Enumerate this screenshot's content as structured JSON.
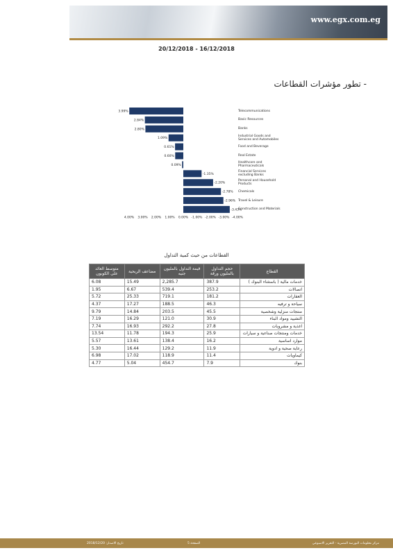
{
  "header": {
    "site": "www.egx.com.eg",
    "date_range": "20/12/2018 - 16/12/2018"
  },
  "section_title": "- تطور مؤشرات القطاعات",
  "chart_data": {
    "type": "bar",
    "orientation": "horizontal",
    "color": "#1f3a68",
    "categories": [
      "Telecommunications",
      "Basic Resources",
      "Banks",
      "Industrial Goods and Services and Automobiles",
      "Food and Beverage",
      "Real Estate",
      "Healthcare and Pharmaceuticals",
      "Financial Services excluding Banks",
      "Personal and Household Products",
      "Chemicals",
      "Travel & Leisure",
      "Construction and Materials"
    ],
    "values": [
      3.99,
      2.84,
      2.8,
      1.09,
      0.61,
      0.6,
      0.09,
      -1.35,
      -2.2,
      -2.78,
      -2.96,
      -3.43
    ],
    "value_labels": [
      "3.99%",
      "2.84%",
      "2.80%",
      "1.09%",
      "0.61%",
      "0.60%",
      "0.09%",
      "-1.35%",
      "-2.20%",
      "-2.78%",
      "-2.96%",
      "-3.43%"
    ],
    "xlim": [
      4,
      -4
    ],
    "xticks": [
      {
        "value": 4,
        "label": "4.00%"
      },
      {
        "value": 3,
        "label": "3.00%"
      },
      {
        "value": 2,
        "label": "2.00%"
      },
      {
        "value": 1,
        "label": "1.00%"
      },
      {
        "value": 0,
        "label": "0.00%"
      },
      {
        "value": -1,
        "label": "-1.00%"
      },
      {
        "value": -2,
        "label": "-2.00%"
      },
      {
        "value": -3,
        "label": "-3.00%"
      },
      {
        "value": -4,
        "label": "-4.00%"
      }
    ],
    "grid": false
  },
  "table": {
    "title": "القطاعات من حيث كمية التداول",
    "header": [
      "القطاع",
      "حجم التداول بالمليون ورقة",
      "قيمة التداول بالمليون جنيه",
      "مضاعف الربحية",
      "متوسط العائد على الكوبون"
    ],
    "rows": [
      [
        "خدمات مالية ( باستثناء البنوك )",
        "387.9",
        "2,285.7",
        "15.49",
        "6.08"
      ],
      [
        "اتصالات",
        "253.2",
        "539.4",
        "6.67",
        "1.95"
      ],
      [
        "العقارات",
        "181.2",
        "719.1",
        "25.33",
        "5.72"
      ],
      [
        "سياحة و ترفيه",
        "46.3",
        "188.5",
        "17.27",
        "4.37"
      ],
      [
        "منتجات منزلية وشخصية",
        "45.5",
        "203.5",
        "14.84",
        "9.79"
      ],
      [
        "التشييد ومواد البناء",
        "30.9",
        "121.0",
        "16.29",
        "7.19"
      ],
      [
        "اغذية و مشروبات",
        "27.8",
        "292.2",
        "16.93",
        "7.74"
      ],
      [
        "خدمات ومنتجات صناعية و سيارات",
        "25.9",
        "194.3",
        "11.78",
        "13.54"
      ],
      [
        "موارد اساسية",
        "16.2",
        "138.4",
        "13.61",
        "5.57"
      ],
      [
        "رعاية صحية و ادوية",
        "11.9",
        "129.2",
        "16.44",
        "5.30"
      ],
      [
        "كيماويات",
        "11.4",
        "118.9",
        "17.02",
        "6.98"
      ],
      [
        "بنوك",
        "7.9",
        "454.7",
        "5.04",
        "4.77"
      ]
    ]
  },
  "footer": {
    "right": "مركز معلومات البورصة المصرية - التقرير الاسبوعي",
    "center": "الصفحة 5",
    "left": "تاريخ الاصدار: 2018/12/20"
  }
}
